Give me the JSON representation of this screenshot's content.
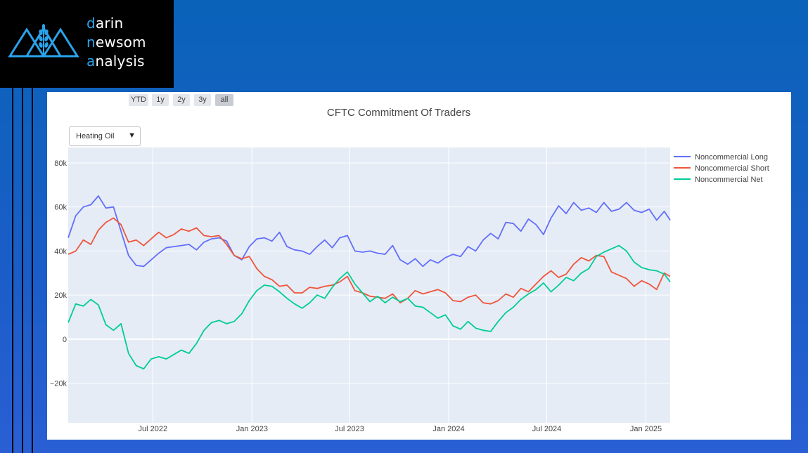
{
  "logo": {
    "line1": {
      "first": "d",
      "rest": "arin"
    },
    "line2": {
      "first": "n",
      "rest": "ewsom"
    },
    "line3": {
      "first": "a",
      "rest": "nalysis"
    },
    "icon": "wheat-mountain-logo-icon",
    "accent_color": "#2aa3ec"
  },
  "range_selector": {
    "buttons": [
      {
        "label": "YTD"
      },
      {
        "label": "1y"
      },
      {
        "label": "2y"
      },
      {
        "label": "3y"
      },
      {
        "label": "all",
        "active": true
      }
    ]
  },
  "dropdown": {
    "selected": "Heating Oil",
    "icon": "caret-down-icon"
  },
  "colors": {
    "plot_bg": "#e5ecf6",
    "grid": "#ffffff",
    "long": "#636efa",
    "short": "#ef553b",
    "net": "#00cc96"
  },
  "chart_data": {
    "type": "line",
    "title": "CFTC Commitment Of Traders",
    "xlabel": "",
    "ylabel": "",
    "ylim": [
      -38000,
      87000
    ],
    "xlim": [
      "2022-01-25",
      "2025-02-15"
    ],
    "y_ticks": [
      {
        "v": 80000,
        "label": "80k"
      },
      {
        "v": 60000,
        "label": "60k"
      },
      {
        "v": 40000,
        "label": "40k"
      },
      {
        "v": 20000,
        "label": "20k"
      },
      {
        "v": 0,
        "label": "0"
      },
      {
        "v": -20000,
        "label": "−20k"
      }
    ],
    "x_ticks": [
      {
        "date": "2022-07-01",
        "label": "Jul 2022"
      },
      {
        "date": "2023-01-01",
        "label": "Jan 2023"
      },
      {
        "date": "2023-07-01",
        "label": "Jul 2023"
      },
      {
        "date": "2024-01-01",
        "label": "Jan 2024"
      },
      {
        "date": "2024-07-01",
        "label": "Jul 2024"
      },
      {
        "date": "2025-01-01",
        "label": "Jan 2025"
      }
    ],
    "grid": true,
    "legend_position": "top-right",
    "series": [
      {
        "name": "Noncommercial Long",
        "color": "#636efa",
        "points": [
          [
            "2022-01-25",
            46000
          ],
          [
            "2022-02-08",
            56000
          ],
          [
            "2022-02-22",
            60000
          ],
          [
            "2022-03-08",
            61000
          ],
          [
            "2022-03-22",
            65000
          ],
          [
            "2022-04-05",
            59500
          ],
          [
            "2022-04-19",
            60000
          ],
          [
            "2022-05-03",
            49000
          ],
          [
            "2022-05-17",
            38000
          ],
          [
            "2022-05-31",
            33500
          ],
          [
            "2022-06-14",
            33000
          ],
          [
            "2022-06-28",
            36000
          ],
          [
            "2022-07-12",
            39000
          ],
          [
            "2022-07-26",
            41500
          ],
          [
            "2022-08-09",
            42000
          ],
          [
            "2022-08-23",
            42500
          ],
          [
            "2022-09-06",
            43000
          ],
          [
            "2022-09-20",
            40500
          ],
          [
            "2022-10-04",
            44000
          ],
          [
            "2022-10-18",
            45500
          ],
          [
            "2022-11-01",
            46000
          ],
          [
            "2022-11-15",
            44500
          ],
          [
            "2022-11-29",
            38000
          ],
          [
            "2022-12-13",
            36000
          ],
          [
            "2022-12-27",
            42000
          ],
          [
            "2023-01-10",
            45500
          ],
          [
            "2023-01-24",
            46000
          ],
          [
            "2023-02-07",
            44500
          ],
          [
            "2023-02-21",
            48500
          ],
          [
            "2023-03-07",
            42000
          ],
          [
            "2023-03-21",
            40500
          ],
          [
            "2023-04-04",
            40000
          ],
          [
            "2023-04-18",
            38500
          ],
          [
            "2023-05-02",
            42000
          ],
          [
            "2023-05-16",
            45000
          ],
          [
            "2023-05-30",
            41500
          ],
          [
            "2023-06-13",
            46000
          ],
          [
            "2023-06-27",
            47000
          ],
          [
            "2023-07-11",
            40000
          ],
          [
            "2023-07-25",
            39500
          ],
          [
            "2023-08-08",
            40000
          ],
          [
            "2023-08-22",
            39000
          ],
          [
            "2023-09-05",
            38500
          ],
          [
            "2023-09-19",
            42500
          ],
          [
            "2023-10-03",
            36000
          ],
          [
            "2023-10-17",
            34000
          ],
          [
            "2023-10-31",
            36500
          ],
          [
            "2023-11-14",
            33000
          ],
          [
            "2023-11-28",
            36000
          ],
          [
            "2023-12-12",
            34500
          ],
          [
            "2023-12-26",
            37000
          ],
          [
            "2024-01-09",
            38500
          ],
          [
            "2024-01-23",
            37500
          ],
          [
            "2024-02-06",
            42000
          ],
          [
            "2024-02-20",
            40000
          ],
          [
            "2024-03-05",
            45000
          ],
          [
            "2024-03-19",
            48000
          ],
          [
            "2024-04-02",
            45500
          ],
          [
            "2024-04-16",
            53000
          ],
          [
            "2024-04-30",
            52500
          ],
          [
            "2024-05-14",
            49000
          ],
          [
            "2024-05-28",
            54500
          ],
          [
            "2024-06-11",
            52000
          ],
          [
            "2024-06-25",
            47500
          ],
          [
            "2024-07-09",
            55000
          ],
          [
            "2024-07-23",
            60500
          ],
          [
            "2024-08-06",
            57000
          ],
          [
            "2024-08-20",
            62000
          ],
          [
            "2024-09-03",
            58500
          ],
          [
            "2024-09-17",
            59500
          ],
          [
            "2024-10-01",
            57500
          ],
          [
            "2024-10-15",
            62000
          ],
          [
            "2024-10-29",
            58000
          ],
          [
            "2024-11-12",
            59000
          ],
          [
            "2024-11-26",
            62000
          ],
          [
            "2024-12-10",
            58500
          ],
          [
            "2024-12-24",
            57500
          ],
          [
            "2025-01-07",
            59000
          ],
          [
            "2025-01-21",
            54000
          ],
          [
            "2025-02-04",
            58000
          ],
          [
            "2025-02-15",
            54000
          ]
        ]
      },
      {
        "name": "Noncommercial Short",
        "color": "#ef553b",
        "points": [
          [
            "2022-01-25",
            38500
          ],
          [
            "2022-02-08",
            40000
          ],
          [
            "2022-02-22",
            45000
          ],
          [
            "2022-03-08",
            43000
          ],
          [
            "2022-03-22",
            49500
          ],
          [
            "2022-04-05",
            53000
          ],
          [
            "2022-04-19",
            55000
          ],
          [
            "2022-05-03",
            52000
          ],
          [
            "2022-05-17",
            44000
          ],
          [
            "2022-05-31",
            45000
          ],
          [
            "2022-06-14",
            42500
          ],
          [
            "2022-06-28",
            45500
          ],
          [
            "2022-07-12",
            48500
          ],
          [
            "2022-07-26",
            46000
          ],
          [
            "2022-08-09",
            47500
          ],
          [
            "2022-08-23",
            50000
          ],
          [
            "2022-09-06",
            49000
          ],
          [
            "2022-09-20",
            50500
          ],
          [
            "2022-10-04",
            47000
          ],
          [
            "2022-10-18",
            46500
          ],
          [
            "2022-11-01",
            47000
          ],
          [
            "2022-11-15",
            43000
          ],
          [
            "2022-11-29",
            38000
          ],
          [
            "2022-12-13",
            36500
          ],
          [
            "2022-12-27",
            37500
          ],
          [
            "2023-01-10",
            32000
          ],
          [
            "2023-01-24",
            28500
          ],
          [
            "2023-02-07",
            27000
          ],
          [
            "2023-02-21",
            24000
          ],
          [
            "2023-03-07",
            24500
          ],
          [
            "2023-03-21",
            21000
          ],
          [
            "2023-04-04",
            21000
          ],
          [
            "2023-04-18",
            23500
          ],
          [
            "2023-05-02",
            23000
          ],
          [
            "2023-05-16",
            24000
          ],
          [
            "2023-05-30",
            24500
          ],
          [
            "2023-06-13",
            26000
          ],
          [
            "2023-06-27",
            28500
          ],
          [
            "2023-07-11",
            22000
          ],
          [
            "2023-07-25",
            21000
          ],
          [
            "2023-08-08",
            19500
          ],
          [
            "2023-08-22",
            19000
          ],
          [
            "2023-09-05",
            18500
          ],
          [
            "2023-09-19",
            20500
          ],
          [
            "2023-10-03",
            16500
          ],
          [
            "2023-10-17",
            18500
          ],
          [
            "2023-10-31",
            22000
          ],
          [
            "2023-11-14",
            20500
          ],
          [
            "2023-11-28",
            21500
          ],
          [
            "2023-12-12",
            22500
          ],
          [
            "2023-12-26",
            21000
          ],
          [
            "2024-01-09",
            17500
          ],
          [
            "2024-01-23",
            17000
          ],
          [
            "2024-02-06",
            19000
          ],
          [
            "2024-02-20",
            20000
          ],
          [
            "2024-03-05",
            16500
          ],
          [
            "2024-03-19",
            16000
          ],
          [
            "2024-04-02",
            17500
          ],
          [
            "2024-04-16",
            20500
          ],
          [
            "2024-04-30",
            19000
          ],
          [
            "2024-05-14",
            23000
          ],
          [
            "2024-05-28",
            21500
          ],
          [
            "2024-06-11",
            25000
          ],
          [
            "2024-06-25",
            28500
          ],
          [
            "2024-07-09",
            31000
          ],
          [
            "2024-07-23",
            28000
          ],
          [
            "2024-08-06",
            29500
          ],
          [
            "2024-08-20",
            34000
          ],
          [
            "2024-09-03",
            37000
          ],
          [
            "2024-09-17",
            35500
          ],
          [
            "2024-10-01",
            38000
          ],
          [
            "2024-10-15",
            37500
          ],
          [
            "2024-10-29",
            30500
          ],
          [
            "2024-11-12",
            29000
          ],
          [
            "2024-11-26",
            27500
          ],
          [
            "2024-12-10",
            24000
          ],
          [
            "2024-12-24",
            26500
          ],
          [
            "2025-01-07",
            25000
          ],
          [
            "2025-01-21",
            22500
          ],
          [
            "2025-02-04",
            30000
          ],
          [
            "2025-02-15",
            28500
          ]
        ]
      },
      {
        "name": "Noncommercial Net",
        "color": "#00cc96",
        "points": [
          [
            "2022-01-25",
            7500
          ],
          [
            "2022-02-08",
            16000
          ],
          [
            "2022-02-22",
            15000
          ],
          [
            "2022-03-08",
            18000
          ],
          [
            "2022-03-22",
            15500
          ],
          [
            "2022-04-05",
            6500
          ],
          [
            "2022-04-19",
            4000
          ],
          [
            "2022-05-03",
            7000
          ],
          [
            "2022-05-17",
            -6500
          ],
          [
            "2022-05-31",
            -12000
          ],
          [
            "2022-06-14",
            -13500
          ],
          [
            "2022-06-28",
            -9000
          ],
          [
            "2022-07-12",
            -8000
          ],
          [
            "2022-07-26",
            -9000
          ],
          [
            "2022-08-09",
            -7000
          ],
          [
            "2022-08-23",
            -5000
          ],
          [
            "2022-09-06",
            -6500
          ],
          [
            "2022-09-20",
            -2000
          ],
          [
            "2022-10-04",
            4000
          ],
          [
            "2022-10-18",
            7500
          ],
          [
            "2022-11-01",
            8500
          ],
          [
            "2022-11-15",
            7000
          ],
          [
            "2022-11-29",
            8000
          ],
          [
            "2022-12-13",
            11500
          ],
          [
            "2022-12-27",
            17500
          ],
          [
            "2023-01-10",
            22000
          ],
          [
            "2023-01-24",
            24500
          ],
          [
            "2023-02-07",
            24000
          ],
          [
            "2023-02-21",
            21500
          ],
          [
            "2023-03-07",
            18500
          ],
          [
            "2023-03-21",
            16000
          ],
          [
            "2023-04-04",
            14000
          ],
          [
            "2023-04-18",
            16500
          ],
          [
            "2023-05-02",
            20000
          ],
          [
            "2023-05-16",
            18500
          ],
          [
            "2023-05-30",
            23500
          ],
          [
            "2023-06-13",
            27500
          ],
          [
            "2023-06-27",
            30500
          ],
          [
            "2023-07-11",
            25000
          ],
          [
            "2023-07-25",
            21000
          ],
          [
            "2023-08-08",
            17000
          ],
          [
            "2023-08-22",
            19500
          ],
          [
            "2023-09-05",
            16500
          ],
          [
            "2023-09-19",
            19000
          ],
          [
            "2023-10-03",
            17000
          ],
          [
            "2023-10-17",
            18500
          ],
          [
            "2023-10-31",
            15000
          ],
          [
            "2023-11-14",
            14500
          ],
          [
            "2023-11-28",
            12000
          ],
          [
            "2023-12-12",
            9500
          ],
          [
            "2023-12-26",
            11000
          ],
          [
            "2024-01-09",
            6000
          ],
          [
            "2024-01-23",
            4500
          ],
          [
            "2024-02-06",
            8000
          ],
          [
            "2024-02-20",
            5000
          ],
          [
            "2024-03-05",
            4000
          ],
          [
            "2024-03-19",
            3500
          ],
          [
            "2024-04-02",
            8000
          ],
          [
            "2024-04-16",
            12000
          ],
          [
            "2024-04-30",
            14500
          ],
          [
            "2024-05-14",
            18000
          ],
          [
            "2024-05-28",
            20500
          ],
          [
            "2024-06-11",
            22500
          ],
          [
            "2024-06-25",
            25500
          ],
          [
            "2024-07-09",
            21500
          ],
          [
            "2024-07-23",
            24500
          ],
          [
            "2024-08-06",
            28000
          ],
          [
            "2024-08-20",
            26500
          ],
          [
            "2024-09-03",
            30000
          ],
          [
            "2024-09-17",
            32000
          ],
          [
            "2024-10-01",
            37500
          ],
          [
            "2024-10-15",
            39500
          ],
          [
            "2024-10-29",
            41000
          ],
          [
            "2024-11-12",
            42500
          ],
          [
            "2024-11-26",
            40000
          ],
          [
            "2024-12-10",
            35000
          ],
          [
            "2024-12-24",
            32500
          ],
          [
            "2025-01-07",
            31500
          ],
          [
            "2025-01-21",
            31000
          ],
          [
            "2025-02-04",
            29500
          ],
          [
            "2025-02-15",
            26000
          ]
        ]
      }
    ]
  }
}
